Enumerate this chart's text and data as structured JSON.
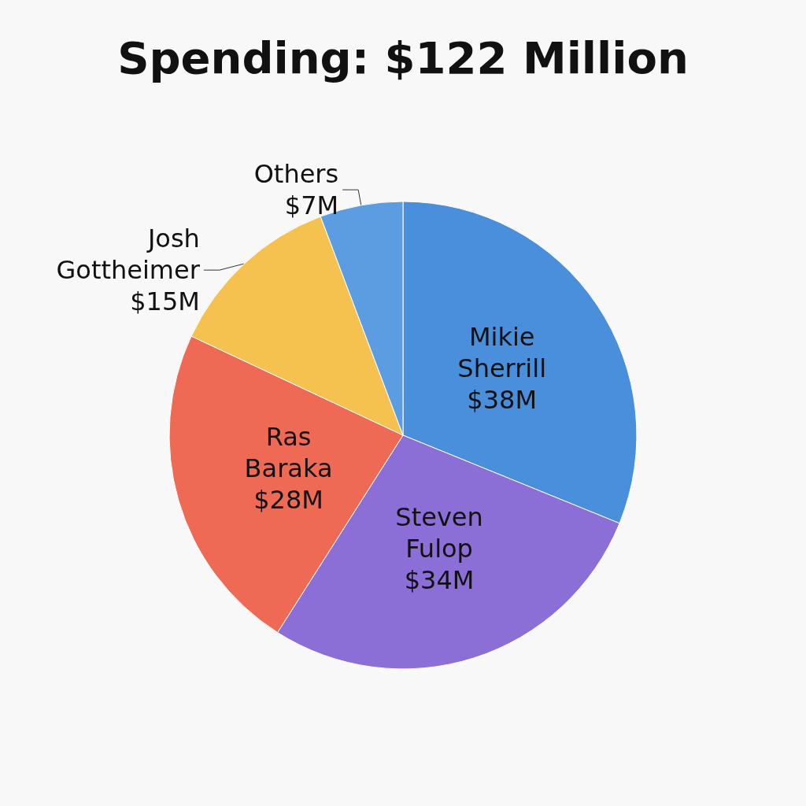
{
  "chart_data": {
    "type": "pie",
    "title": "Spending: $122 Million",
    "categories": [
      "Mikie Sherrill",
      "Steven Fulop",
      "Ras Baraka",
      "Josh Gottheimer",
      "Others"
    ],
    "values": [
      38,
      34,
      28,
      15,
      7
    ],
    "value_labels": [
      "$38M",
      "$34M",
      "$28M",
      "$15M",
      "$7M"
    ],
    "colors": [
      "#4a8fdb",
      "#8b6fd6",
      "#ef6a55",
      "#f6c24f",
      "#5b9de0"
    ],
    "legend": false
  }
}
